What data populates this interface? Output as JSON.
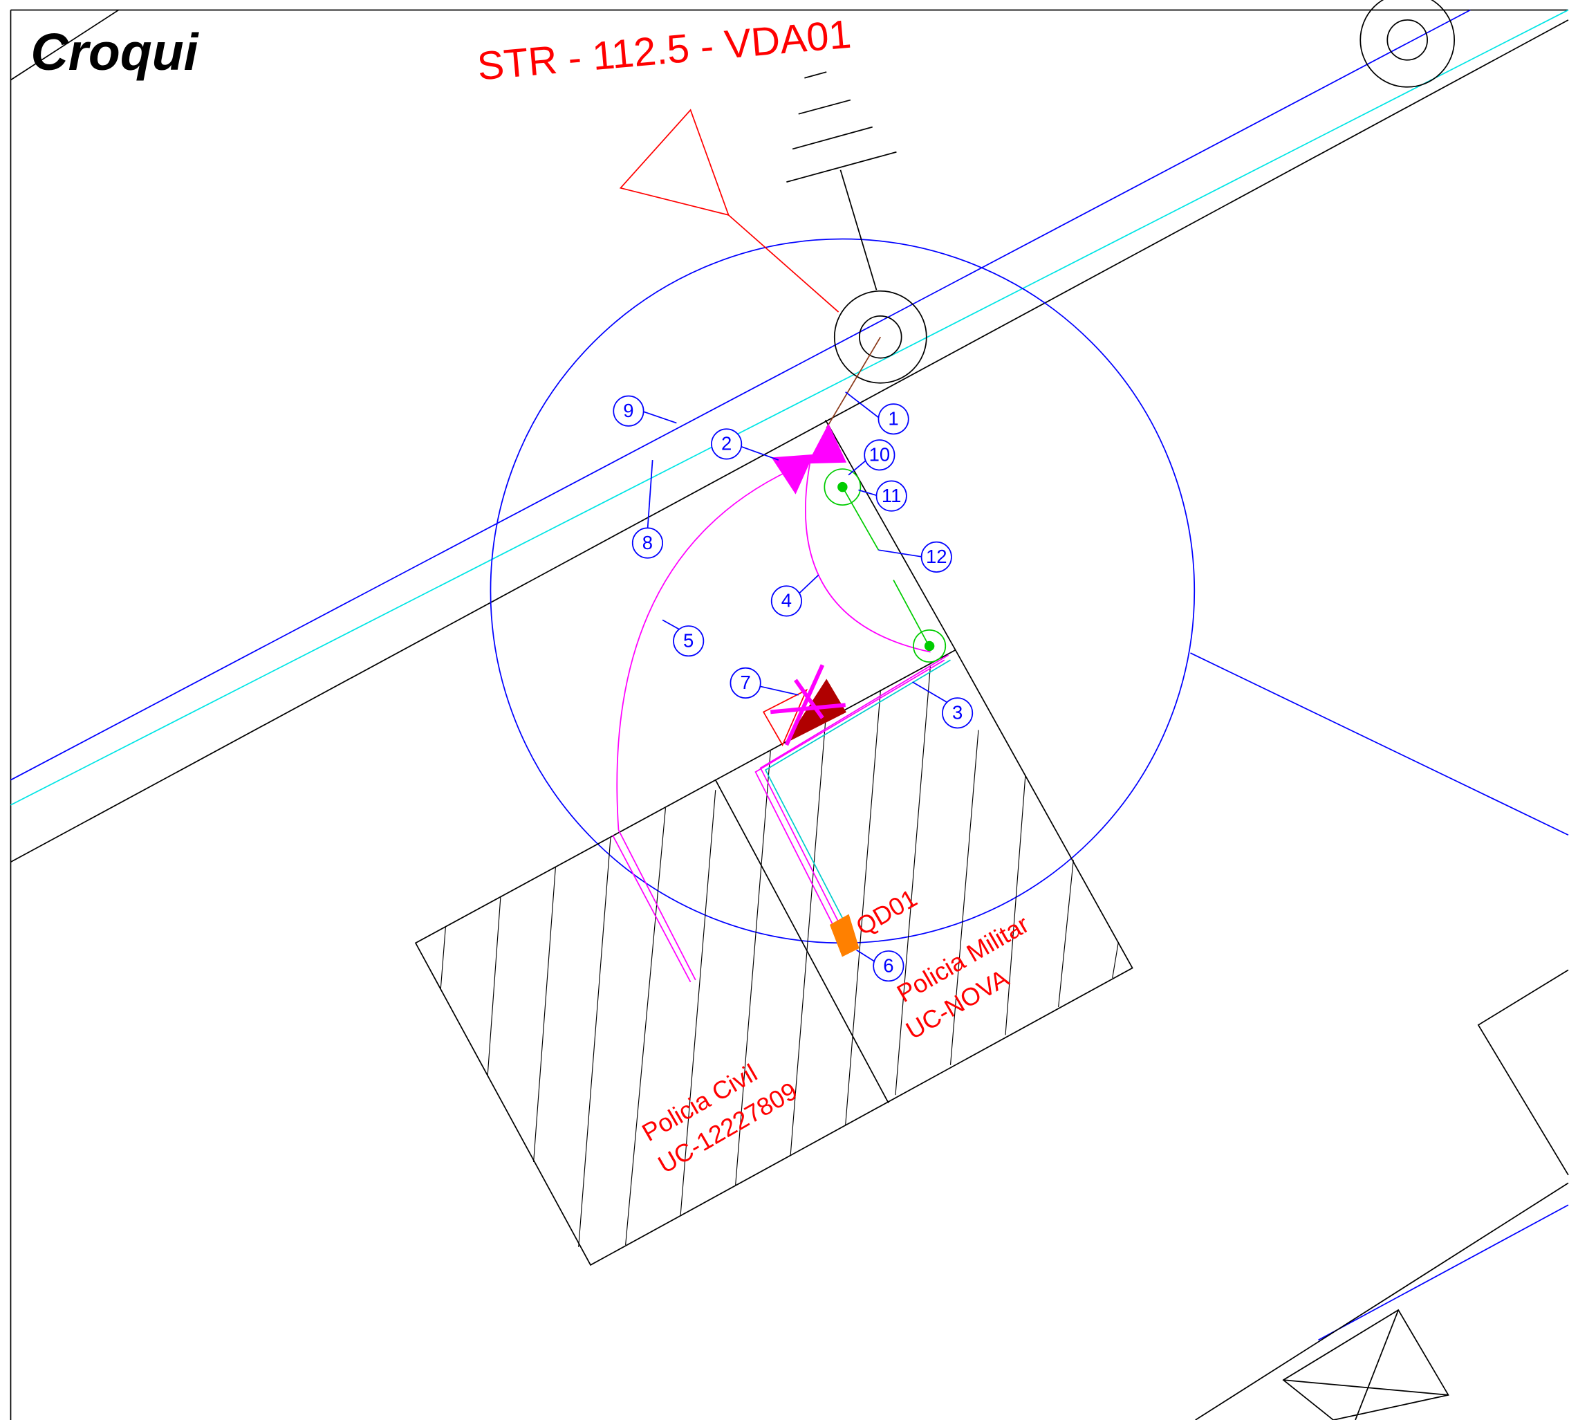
{
  "header": {
    "title": "Croqui",
    "pole_label": "STR - 112.5 - VDA01"
  },
  "callouts": [
    "1",
    "2",
    "3",
    "4",
    "5",
    "6",
    "7",
    "8",
    "9",
    "10",
    "11",
    "12"
  ],
  "labels": {
    "panel": "QD01",
    "unit_a_name": "Policia Militar",
    "unit_a_code": "UC-NOVA",
    "unit_b_name": "Policia Civil",
    "unit_b_code": "UC-12227809"
  }
}
